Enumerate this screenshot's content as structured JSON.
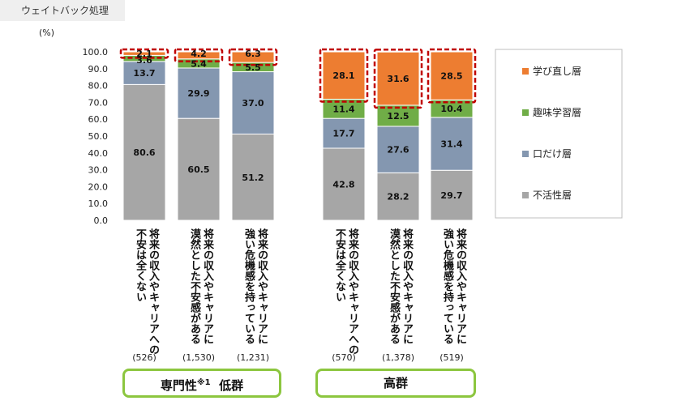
{
  "header": {
    "tag": "ウェイトバック処理"
  },
  "chart_data": {
    "type": "bar",
    "stacked": true,
    "unit_label": "(%)",
    "ylim": [
      0,
      100
    ],
    "yticks": [
      "0.0",
      "10.0",
      "20.0",
      "30.0",
      "40.0",
      "50.0",
      "60.0",
      "70.0",
      "80.0",
      "90.0",
      "100.0"
    ],
    "categories": [
      {
        "label_lines": [
          "将来の収入やキャリアへの",
          "不安は全くない"
        ],
        "n": "(526)"
      },
      {
        "label_lines": [
          "将来の収入やキャリアに",
          "漠然とした不安感がある"
        ],
        "n": "(1,530)"
      },
      {
        "label_lines": [
          "将来の収入やキャリアに",
          "強い危機感を持っている"
        ],
        "n": "(1,231)"
      },
      {
        "label_lines": [
          "将来の収入やキャリアへの",
          "不安は全くない"
        ],
        "n": "(570)"
      },
      {
        "label_lines": [
          "将来の収入やキャリアに",
          "漠然とした不安感がある"
        ],
        "n": "(1,378)"
      },
      {
        "label_lines": [
          "将来の収入やキャリアに",
          "強い危機感を持っている"
        ],
        "n": "(519)"
      }
    ],
    "series": [
      {
        "name": "不活性層",
        "color": "#a6a6a6",
        "values": [
          80.6,
          60.5,
          51.2,
          42.8,
          28.2,
          29.7
        ]
      },
      {
        "name": "口だけ層",
        "color": "#8497b0",
        "values": [
          13.7,
          29.9,
          37.0,
          17.7,
          27.6,
          31.4
        ]
      },
      {
        "name": "趣味学習層",
        "color": "#70ad47",
        "values": [
          3.6,
          5.4,
          5.5,
          11.4,
          12.5,
          10.4
        ]
      },
      {
        "name": "学び直し層",
        "color": "#ed7d31",
        "values": [
          2.1,
          4.2,
          6.3,
          28.1,
          31.6,
          28.5
        ]
      }
    ],
    "legend": [
      "学び直し層",
      "趣味学習層",
      "口だけ層",
      "不活性層"
    ],
    "legend_placement": "right",
    "groups": [
      {
        "label": "専門性",
        "sup": "※1",
        "suffix": "低群"
      },
      {
        "label": "高群",
        "sup": "",
        "suffix": ""
      }
    ],
    "highlight_color": "#c00000"
  }
}
